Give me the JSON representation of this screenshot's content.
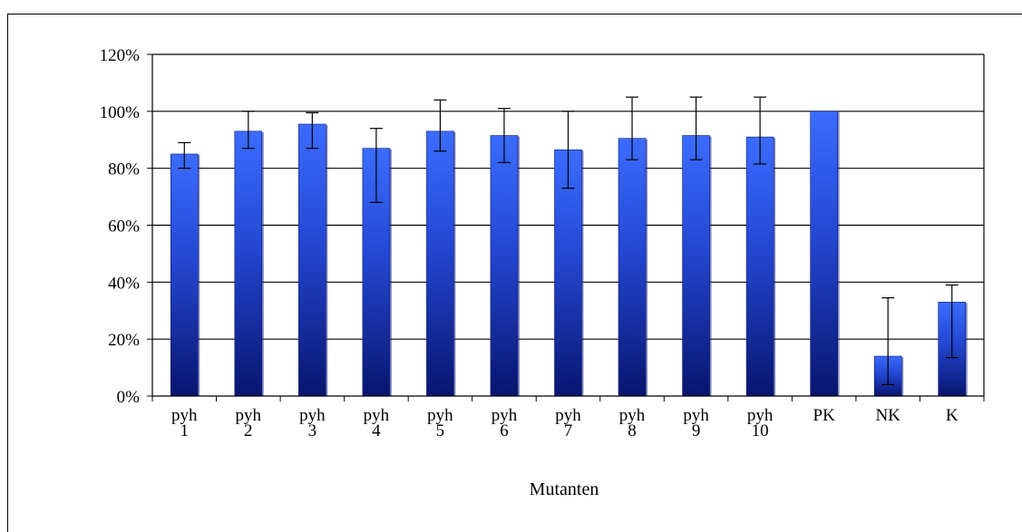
{
  "chart_data": {
    "type": "bar",
    "title": "",
    "xlabel": "Mutanten",
    "ylabel": "",
    "ylim": [
      0,
      1.2
    ],
    "yticks": [
      {
        "value": 0,
        "label": "0%"
      },
      {
        "value": 0.2,
        "label": "20%"
      },
      {
        "value": 0.4,
        "label": "40%"
      },
      {
        "value": 0.6,
        "label": "60%"
      },
      {
        "value": 0.8,
        "label": "80%"
      },
      {
        "value": 1.0,
        "label": "100%"
      },
      {
        "value": 1.2,
        "label": "120%"
      }
    ],
    "grid": true,
    "legend": "none",
    "bar_color": "#2f5be8",
    "bar_color_dark": "#0a1878",
    "categories": [
      [
        "pyh",
        "1"
      ],
      [
        "pyh",
        "2"
      ],
      [
        "pyh",
        "3"
      ],
      [
        "pyh",
        "4"
      ],
      [
        "pyh",
        "5"
      ],
      [
        "pyh",
        "6"
      ],
      [
        "pyh",
        "7"
      ],
      [
        "pyh",
        "8"
      ],
      [
        "pyh",
        "9"
      ],
      [
        "pyh",
        "10"
      ],
      [
        "PK"
      ],
      [
        "NK"
      ],
      [
        "K"
      ]
    ],
    "values": [
      0.85,
      0.93,
      0.955,
      0.87,
      0.93,
      0.915,
      0.865,
      0.905,
      0.915,
      0.91,
      1.0,
      0.14,
      0.33
    ],
    "error_bars": [
      [
        0.8,
        0.89
      ],
      [
        0.87,
        1.0
      ],
      [
        0.87,
        0.995
      ],
      [
        0.68,
        0.94
      ],
      [
        0.86,
        1.04
      ],
      [
        0.82,
        1.01
      ],
      [
        0.73,
        1.0
      ],
      [
        0.83,
        1.05
      ],
      [
        0.83,
        1.05
      ],
      [
        0.815,
        1.05
      ],
      null,
      [
        0.04,
        0.345
      ],
      [
        0.135,
        0.39
      ]
    ]
  }
}
